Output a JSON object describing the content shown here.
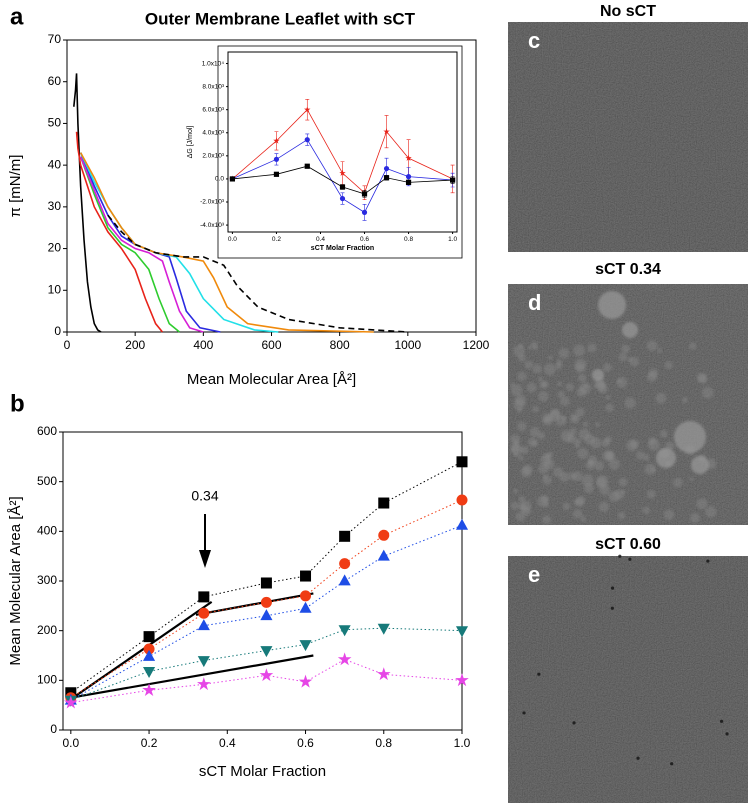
{
  "chart_data": [
    {
      "type": "line",
      "panel": "a",
      "title": "Outer Membrane Leaflet with sCT",
      "xlabel": "Mean Molecular Area  [Å²]",
      "ylabel": "π [mN/m]",
      "xlim": [
        0,
        1200
      ],
      "xticks": [
        0,
        200,
        400,
        600,
        800,
        1000,
        1200
      ],
      "ylim": [
        0,
        70
      ],
      "yticks": [
        0,
        10,
        20,
        30,
        40,
        50,
        60,
        70
      ],
      "series": [
        {
          "color": "#000000",
          "dash": "solid",
          "x": [
            20,
            25,
            28,
            32,
            40,
            50,
            60,
            70,
            80,
            90,
            100
          ],
          "values": [
            54,
            58,
            62,
            50,
            35,
            22,
            12,
            6,
            2,
            0.5,
            0
          ]
        },
        {
          "color": "#e8231a",
          "dash": "solid",
          "x": [
            28,
            32,
            40,
            80,
            120,
            160,
            200,
            230,
            260,
            280
          ],
          "values": [
            48,
            44,
            40,
            30,
            24,
            20,
            15,
            8,
            2,
            0
          ]
        },
        {
          "color": "#2ecc2e",
          "dash": "solid",
          "x": [
            40,
            80,
            120,
            160,
            200,
            240,
            270,
            300,
            330
          ],
          "values": [
            42,
            33,
            25,
            21,
            19,
            15,
            8,
            2,
            0
          ]
        },
        {
          "color": "#d61fd6",
          "dash": "solid",
          "x": [
            40,
            80,
            120,
            160,
            200,
            240,
            280,
            300,
            330,
            360,
            400
          ],
          "values": [
            42,
            34,
            26,
            22,
            20,
            19,
            17,
            12,
            5,
            1,
            0
          ]
        },
        {
          "color": "#2a2ae0",
          "dash": "solid",
          "x": [
            40,
            80,
            120,
            160,
            200,
            260,
            300,
            320,
            350,
            390,
            450
          ],
          "values": [
            43,
            35,
            28,
            23,
            21,
            19,
            18,
            13,
            5,
            1,
            0
          ]
        },
        {
          "color": "#22e0e8",
          "dash": "solid",
          "x": [
            40,
            80,
            120,
            160,
            200,
            260,
            320,
            360,
            400,
            460,
            550,
            620
          ],
          "values": [
            43,
            36,
            30,
            25,
            21,
            19,
            18,
            14,
            8,
            3,
            0.5,
            0
          ]
        },
        {
          "color": "#f08a0c",
          "dash": "solid",
          "x": [
            40,
            80,
            120,
            160,
            200,
            260,
            340,
            400,
            430,
            470,
            530,
            650,
            900
          ],
          "values": [
            43,
            37,
            30,
            25,
            21,
            19,
            18,
            17,
            13,
            6,
            2,
            0.5,
            0
          ]
        },
        {
          "color": "#000000",
          "dash": "dashed",
          "x": [
            120,
            160,
            200,
            260,
            340,
            400,
            460,
            500,
            560,
            650,
            800,
            1000
          ],
          "values": [
            28,
            24,
            21,
            19,
            18,
            18,
            16,
            11,
            6,
            3,
            1,
            0
          ]
        }
      ]
    },
    {
      "type": "line",
      "xlabel": "sCT Molar Fraction",
      "ylabel": "ΔG [J/mol]",
      "xlim": [
        -0.02,
        1.02
      ],
      "xticks": [
        {
          "value": 0,
          "label": "0.0"
        },
        {
          "value": 0.2,
          "label": "0.2"
        },
        {
          "value": 0.4,
          "label": "0.4"
        },
        {
          "value": 0.6,
          "label": "0.6"
        },
        {
          "value": 0.8,
          "label": "0.8"
        },
        {
          "value": 1,
          "label": "1.0"
        }
      ],
      "ylim": [
        -4600,
        11000
      ],
      "yticks": [
        {
          "value": -4000,
          "label": "-4.0x10³"
        },
        {
          "value": -2000,
          "label": "-2.0x10³"
        },
        {
          "value": 0,
          "label": "0.0"
        },
        {
          "value": 2000,
          "label": "2.0x10³"
        },
        {
          "value": 4000,
          "label": "4.0x10³"
        },
        {
          "value": 6000,
          "label": "6.0x10³"
        },
        {
          "value": 8000,
          "label": "8.0x10³"
        },
        {
          "value": 10000,
          "label": "1.0x10⁴"
        }
      ],
      "series": [
        {
          "color": "#e8231a",
          "marker": "star",
          "dash": "solid",
          "x": [
            0,
            0.2,
            0.34,
            0.5,
            0.6,
            0.7,
            0.8,
            1.0
          ],
          "values": [
            0,
            3300,
            6000,
            500,
            -1200,
            4100,
            1800,
            0
          ],
          "errors": [
            0,
            800,
            900,
            1000,
            600,
            1400,
            1600,
            1200
          ]
        },
        {
          "color": "#2a2ae0",
          "marker": "circle",
          "dash": "solid",
          "x": [
            0,
            0.2,
            0.34,
            0.5,
            0.6,
            0.7,
            0.8,
            1.0
          ],
          "values": [
            0,
            1700,
            3400,
            -1700,
            -2900,
            900,
            200,
            -100
          ],
          "errors": [
            0,
            500,
            500,
            500,
            700,
            900,
            800,
            600
          ]
        },
        {
          "color": "#000000",
          "marker": "square",
          "dash": "solid",
          "x": [
            0,
            0.2,
            0.34,
            0.5,
            0.6,
            0.7,
            0.8,
            1.0
          ],
          "values": [
            0,
            400,
            1100,
            -700,
            -1300,
            100,
            -300,
            -100
          ],
          "errors": [
            0,
            100,
            150,
            200,
            300,
            200,
            200,
            300
          ]
        }
      ]
    },
    {
      "type": "line",
      "panel": "b",
      "xlabel": "sCT Molar Fraction",
      "ylabel": "Mean Molecular Area [Å²]",
      "annotation": "0.34",
      "xlim": [
        -0.02,
        1.0
      ],
      "xticks": [
        {
          "value": 0,
          "label": "0.0"
        },
        {
          "value": 0.2,
          "label": "0.2"
        },
        {
          "value": 0.4,
          "label": "0.4"
        },
        {
          "value": 0.6,
          "label": "0.6"
        },
        {
          "value": 0.8,
          "label": "0.8"
        },
        {
          "value": 1,
          "label": "1.0"
        }
      ],
      "ylim": [
        0,
        600
      ],
      "yticks": [
        0,
        100,
        200,
        300,
        400,
        500,
        600
      ],
      "series": [
        {
          "color": "#000000",
          "marker": "square",
          "dash": "dotted",
          "x": [
            0,
            0.2,
            0.34,
            0.5,
            0.6,
            0.7,
            0.8,
            1.0
          ],
          "values": [
            75,
            188,
            268,
            296,
            310,
            390,
            457,
            540
          ]
        },
        {
          "color": "#f03c14",
          "marker": "circle",
          "dash": "dotted",
          "x": [
            0,
            0.2,
            0.34,
            0.5,
            0.6,
            0.7,
            0.8,
            1.0
          ],
          "values": [
            65,
            163,
            235,
            257,
            270,
            335,
            392,
            463
          ]
        },
        {
          "color": "#1e4de6",
          "marker": "triangle-up",
          "dash": "dotted",
          "x": [
            0,
            0.2,
            0.34,
            0.5,
            0.6,
            0.7,
            0.8,
            1.0
          ],
          "values": [
            60,
            148,
            210,
            230,
            245,
            300,
            350,
            412
          ]
        },
        {
          "color": "#177a7a",
          "marker": "triangle-down",
          "dash": "dotted",
          "x": [
            0,
            0.2,
            0.34,
            0.5,
            0.6,
            0.7,
            0.8,
            1.0
          ],
          "values": [
            60,
            118,
            140,
            160,
            172,
            202,
            205,
            200
          ]
        },
        {
          "color": "#e646e6",
          "marker": "star",
          "dash": "dotted",
          "x": [
            0,
            0.2,
            0.34,
            0.5,
            0.6,
            0.7,
            0.8,
            1.0
          ],
          "values": [
            55,
            80,
            92,
            110,
            97,
            142,
            112,
            100
          ]
        }
      ],
      "fit_lines": [
        {
          "color": "#000000",
          "x": [
            0,
            0.36
          ],
          "values": [
            62,
            258
          ]
        },
        {
          "color": "#000000",
          "x": [
            0.32,
            0.62
          ],
          "values": [
            232,
            275
          ]
        },
        {
          "color": "#000000",
          "x": [
            0,
            0.62
          ],
          "values": [
            65,
            150
          ]
        }
      ]
    }
  ],
  "images": [
    {
      "panel": "c",
      "title": "No sCT"
    },
    {
      "panel": "d",
      "title": "sCT 0.34"
    },
    {
      "panel": "e",
      "title": "sCT 0.60"
    }
  ]
}
